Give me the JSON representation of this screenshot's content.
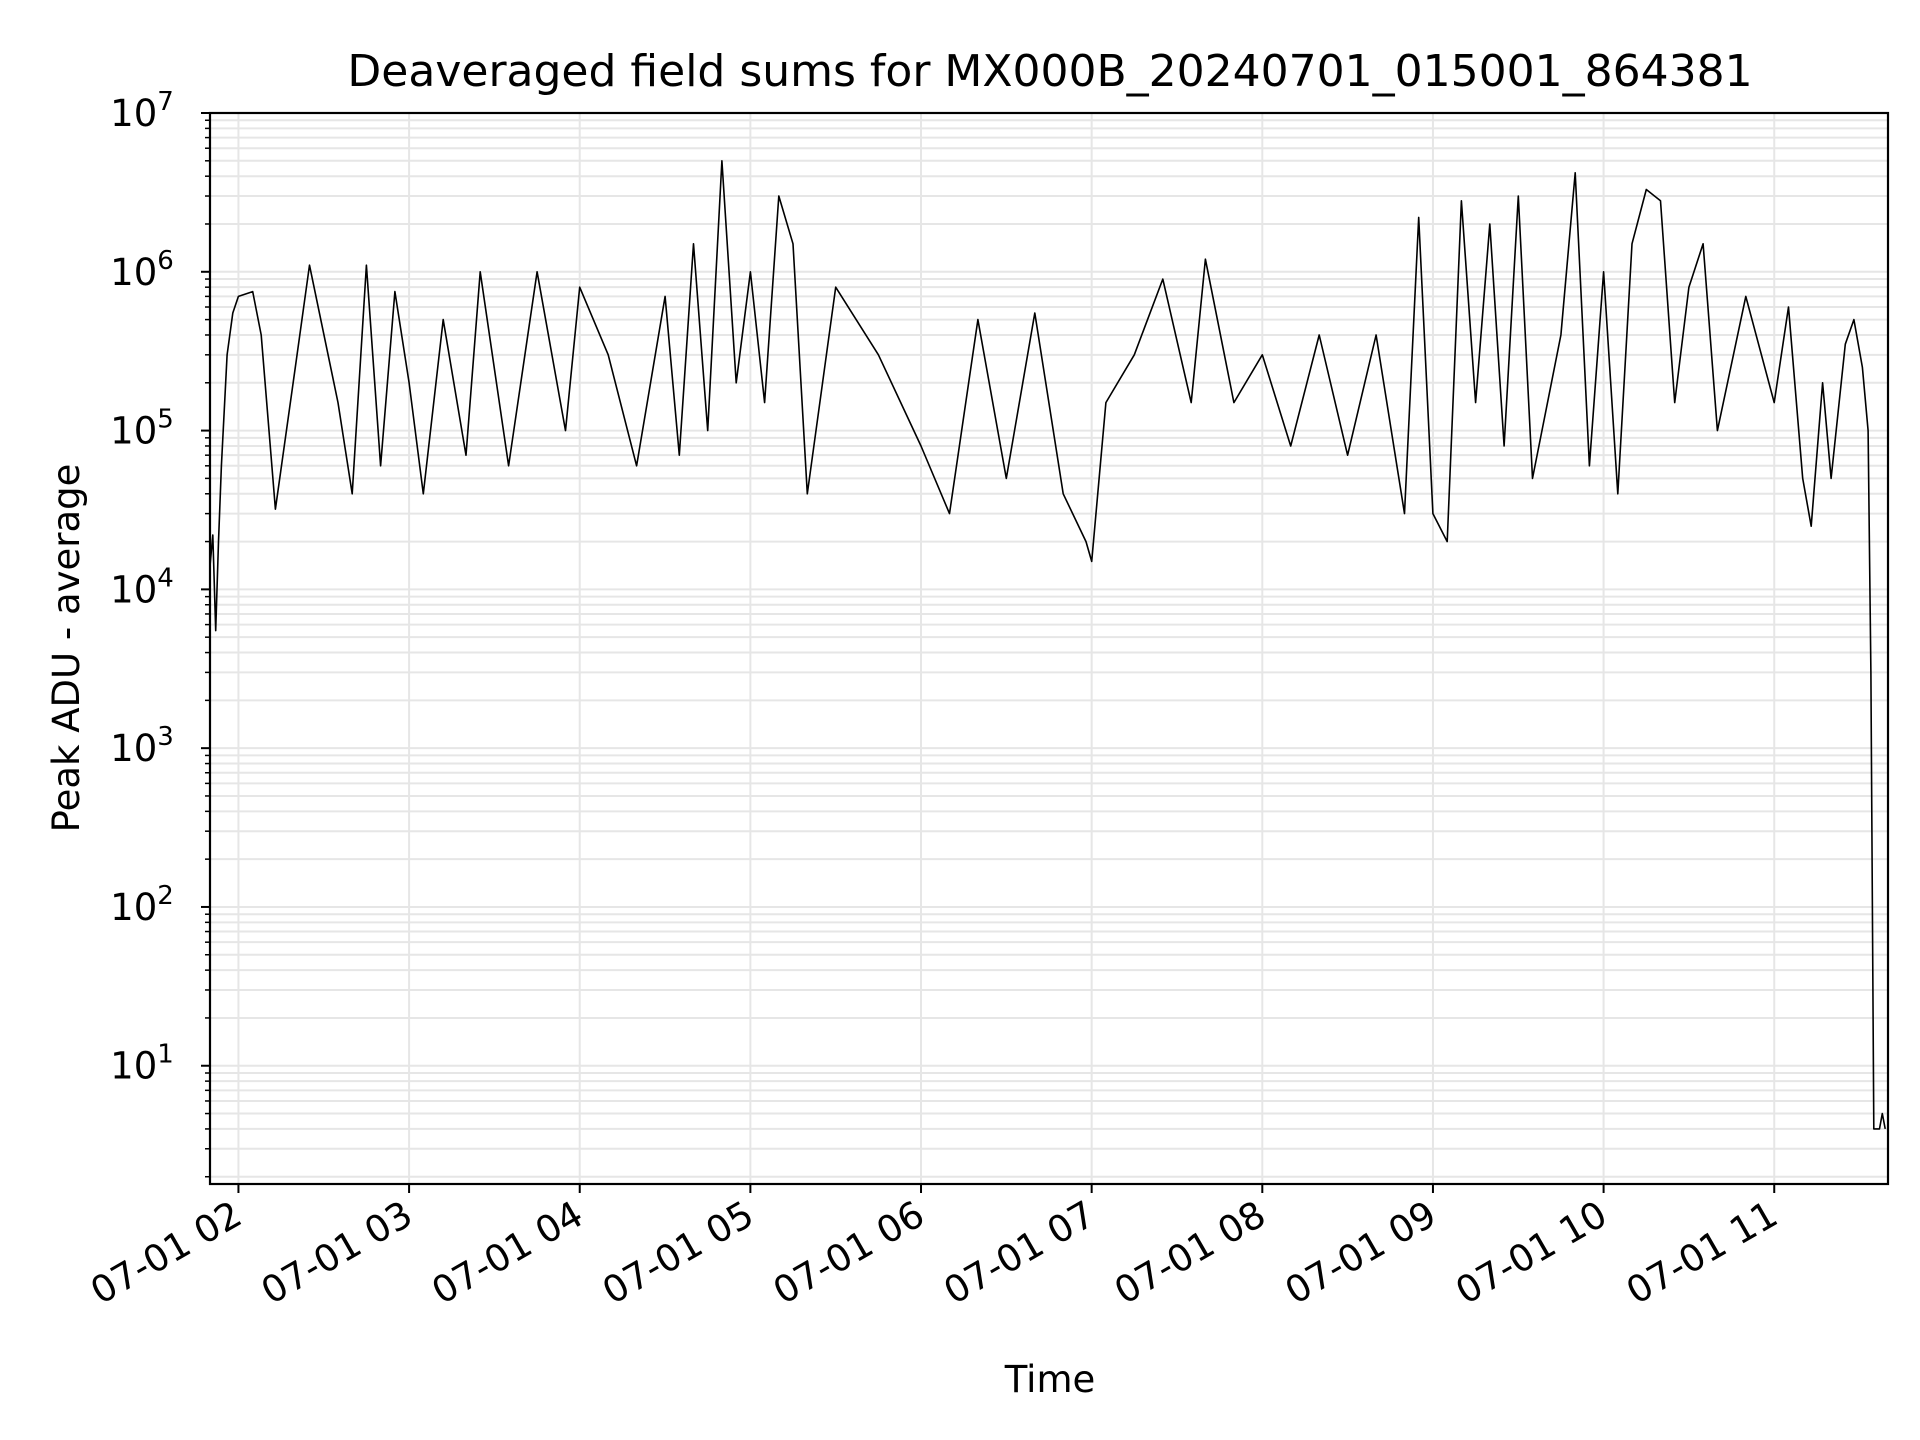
{
  "chart_data": {
    "type": "line",
    "title": "Deaveraged field sums for MX000B_20240701_015001_864381",
    "xlabel": "Time",
    "ylabel": "Peak ADU - average",
    "yscale": "log",
    "ylim": [
      1.8,
      10000000
    ],
    "xlim": [
      "2024-07-01 01:50",
      "2024-07-01 11:40"
    ],
    "x_ticks": [
      {
        "label": "07-01 02",
        "time": "2024-07-01 02:00"
      },
      {
        "label": "07-01 03",
        "time": "2024-07-01 03:00"
      },
      {
        "label": "07-01 04",
        "time": "2024-07-01 04:00"
      },
      {
        "label": "07-01 05",
        "time": "2024-07-01 05:00"
      },
      {
        "label": "07-01 06",
        "time": "2024-07-01 06:00"
      },
      {
        "label": "07-01 07",
        "time": "2024-07-01 07:00"
      },
      {
        "label": "07-01 08",
        "time": "2024-07-01 08:00"
      },
      {
        "label": "07-01 09",
        "time": "2024-07-01 09:00"
      },
      {
        "label": "07-01 10",
        "time": "2024-07-01 10:00"
      },
      {
        "label": "07-01 11",
        "time": "2024-07-01 11:00"
      }
    ],
    "y_ticks": [
      {
        "base": "10",
        "exp": "1",
        "value": 10
      },
      {
        "base": "10",
        "exp": "2",
        "value": 100
      },
      {
        "base": "10",
        "exp": "3",
        "value": 1000
      },
      {
        "base": "10",
        "exp": "4",
        "value": 10000
      },
      {
        "base": "10",
        "exp": "5",
        "value": 100000
      },
      {
        "base": "10",
        "exp": "6",
        "value": 1000000
      },
      {
        "base": "10",
        "exp": "7",
        "value": 10000000
      }
    ],
    "grid": true,
    "line_color": "#000000",
    "grid_color": "#e6e6e6",
    "series": [
      {
        "values": [
          [
            "2024-07-01 01:50",
            14000
          ],
          [
            "2024-07-01 01:51",
            22000
          ],
          [
            "2024-07-01 01:52",
            5500
          ],
          [
            "2024-07-01 01:53",
            20000
          ],
          [
            "2024-07-01 01:54",
            60000
          ],
          [
            "2024-07-01 01:56",
            300000
          ],
          [
            "2024-07-01 01:58",
            550000
          ],
          [
            "2024-07-01 02:00",
            700000
          ],
          [
            "2024-07-01 02:05",
            750000
          ],
          [
            "2024-07-01 02:08",
            400000
          ],
          [
            "2024-07-01 02:13",
            32000
          ],
          [
            "2024-07-01 02:20",
            250000
          ],
          [
            "2024-07-01 02:25",
            1100000
          ],
          [
            "2024-07-01 02:35",
            150000
          ],
          [
            "2024-07-01 02:40",
            40000
          ],
          [
            "2024-07-01 02:45",
            1100000
          ],
          [
            "2024-07-01 02:50",
            60000
          ],
          [
            "2024-07-01 02:55",
            750000
          ],
          [
            "2024-07-01 03:00",
            200000
          ],
          [
            "2024-07-01 03:05",
            40000
          ],
          [
            "2024-07-01 03:12",
            500000
          ],
          [
            "2024-07-01 03:20",
            70000
          ],
          [
            "2024-07-01 03:25",
            1000000
          ],
          [
            "2024-07-01 03:35",
            60000
          ],
          [
            "2024-07-01 03:45",
            1000000
          ],
          [
            "2024-07-01 03:55",
            100000
          ],
          [
            "2024-07-01 04:00",
            800000
          ],
          [
            "2024-07-01 04:10",
            300000
          ],
          [
            "2024-07-01 04:20",
            60000
          ],
          [
            "2024-07-01 04:30",
            700000
          ],
          [
            "2024-07-01 04:35",
            70000
          ],
          [
            "2024-07-01 04:40",
            1500000
          ],
          [
            "2024-07-01 04:45",
            100000
          ],
          [
            "2024-07-01 04:50",
            5000000
          ],
          [
            "2024-07-01 04:55",
            200000
          ],
          [
            "2024-07-01 05:00",
            1000000
          ],
          [
            "2024-07-01 05:05",
            150000
          ],
          [
            "2024-07-01 05:10",
            3000000
          ],
          [
            "2024-07-01 05:15",
            1500000
          ],
          [
            "2024-07-01 05:20",
            40000
          ],
          [
            "2024-07-01 05:30",
            800000
          ],
          [
            "2024-07-01 05:45",
            300000
          ],
          [
            "2024-07-01 06:00",
            80000
          ],
          [
            "2024-07-01 06:10",
            30000
          ],
          [
            "2024-07-01 06:20",
            500000
          ],
          [
            "2024-07-01 06:30",
            50000
          ],
          [
            "2024-07-01 06:40",
            550000
          ],
          [
            "2024-07-01 06:50",
            40000
          ],
          [
            "2024-07-01 06:58",
            20000
          ],
          [
            "2024-07-01 07:00",
            15000
          ],
          [
            "2024-07-01 07:05",
            150000
          ],
          [
            "2024-07-01 07:15",
            300000
          ],
          [
            "2024-07-01 07:25",
            900000
          ],
          [
            "2024-07-01 07:35",
            150000
          ],
          [
            "2024-07-01 07:40",
            1200000
          ],
          [
            "2024-07-01 07:50",
            150000
          ],
          [
            "2024-07-01 08:00",
            300000
          ],
          [
            "2024-07-01 08:10",
            80000
          ],
          [
            "2024-07-01 08:20",
            400000
          ],
          [
            "2024-07-01 08:30",
            70000
          ],
          [
            "2024-07-01 08:40",
            400000
          ],
          [
            "2024-07-01 08:50",
            30000
          ],
          [
            "2024-07-01 08:55",
            2200000
          ],
          [
            "2024-07-01 09:00",
            30000
          ],
          [
            "2024-07-01 09:05",
            20000
          ],
          [
            "2024-07-01 09:10",
            2800000
          ],
          [
            "2024-07-01 09:15",
            150000
          ],
          [
            "2024-07-01 09:20",
            2000000
          ],
          [
            "2024-07-01 09:25",
            80000
          ],
          [
            "2024-07-01 09:30",
            3000000
          ],
          [
            "2024-07-01 09:35",
            50000
          ],
          [
            "2024-07-01 09:45",
            400000
          ],
          [
            "2024-07-01 09:50",
            4200000
          ],
          [
            "2024-07-01 09:55",
            60000
          ],
          [
            "2024-07-01 10:00",
            1000000
          ],
          [
            "2024-07-01 10:05",
            40000
          ],
          [
            "2024-07-01 10:10",
            1500000
          ],
          [
            "2024-07-01 10:15",
            3300000
          ],
          [
            "2024-07-01 10:20",
            2800000
          ],
          [
            "2024-07-01 10:25",
            150000
          ],
          [
            "2024-07-01 10:30",
            800000
          ],
          [
            "2024-07-01 10:35",
            1500000
          ],
          [
            "2024-07-01 10:40",
            100000
          ],
          [
            "2024-07-01 10:50",
            700000
          ],
          [
            "2024-07-01 11:00",
            150000
          ],
          [
            "2024-07-01 11:05",
            600000
          ],
          [
            "2024-07-01 11:10",
            50000
          ],
          [
            "2024-07-01 11:13",
            25000
          ],
          [
            "2024-07-01 11:17",
            200000
          ],
          [
            "2024-07-01 11:20",
            50000
          ],
          [
            "2024-07-01 11:25",
            350000
          ],
          [
            "2024-07-01 11:28",
            500000
          ],
          [
            "2024-07-01 11:31",
            250000
          ],
          [
            "2024-07-01 11:33",
            100000
          ],
          [
            "2024-07-01 11:34",
            3000
          ],
          [
            "2024-07-01 11:35",
            4
          ],
          [
            "2024-07-01 11:37",
            4
          ],
          [
            "2024-07-01 11:38",
            5
          ],
          [
            "2024-07-01 11:39",
            4
          ]
        ]
      }
    ]
  }
}
